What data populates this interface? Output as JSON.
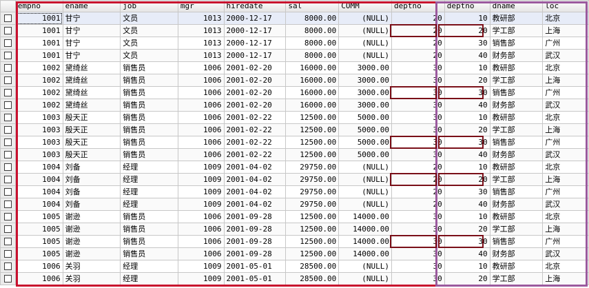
{
  "columns": [
    "empno",
    "ename",
    "job",
    "mgr",
    "hiredate",
    "sal",
    "COMM",
    "deptno",
    "deptno",
    "dname",
    "loc"
  ],
  "rows": [
    [
      "1001",
      "甘宁",
      "文员",
      "1013",
      "2000-12-17",
      "8000.00",
      "(NULL)",
      "20",
      "10",
      "教研部",
      "北京"
    ],
    [
      "1001",
      "甘宁",
      "文员",
      "1013",
      "2000-12-17",
      "8000.00",
      "(NULL)",
      "20",
      "20",
      "学工部",
      "上海"
    ],
    [
      "1001",
      "甘宁",
      "文员",
      "1013",
      "2000-12-17",
      "8000.00",
      "(NULL)",
      "20",
      "30",
      "销售部",
      "广州"
    ],
    [
      "1001",
      "甘宁",
      "文员",
      "1013",
      "2000-12-17",
      "8000.00",
      "(NULL)",
      "20",
      "40",
      "财务部",
      "武汉"
    ],
    [
      "1002",
      "黛绮丝",
      "销售员",
      "1006",
      "2001-02-20",
      "16000.00",
      "3000.00",
      "30",
      "10",
      "教研部",
      "北京"
    ],
    [
      "1002",
      "黛绮丝",
      "销售员",
      "1006",
      "2001-02-20",
      "16000.00",
      "3000.00",
      "30",
      "20",
      "学工部",
      "上海"
    ],
    [
      "1002",
      "黛绮丝",
      "销售员",
      "1006",
      "2001-02-20",
      "16000.00",
      "3000.00",
      "30",
      "30",
      "销售部",
      "广州"
    ],
    [
      "1002",
      "黛绮丝",
      "销售员",
      "1006",
      "2001-02-20",
      "16000.00",
      "3000.00",
      "30",
      "40",
      "财务部",
      "武汉"
    ],
    [
      "1003",
      "殷天正",
      "销售员",
      "1006",
      "2001-02-22",
      "12500.00",
      "5000.00",
      "30",
      "10",
      "教研部",
      "北京"
    ],
    [
      "1003",
      "殷天正",
      "销售员",
      "1006",
      "2001-02-22",
      "12500.00",
      "5000.00",
      "30",
      "20",
      "学工部",
      "上海"
    ],
    [
      "1003",
      "殷天正",
      "销售员",
      "1006",
      "2001-02-22",
      "12500.00",
      "5000.00",
      "30",
      "30",
      "销售部",
      "广州"
    ],
    [
      "1003",
      "殷天正",
      "销售员",
      "1006",
      "2001-02-22",
      "12500.00",
      "5000.00",
      "30",
      "40",
      "财务部",
      "武汉"
    ],
    [
      "1004",
      "刘备",
      "经理",
      "1009",
      "2001-04-02",
      "29750.00",
      "(NULL)",
      "20",
      "10",
      "教研部",
      "北京"
    ],
    [
      "1004",
      "刘备",
      "经理",
      "1009",
      "2001-04-02",
      "29750.00",
      "(NULL)",
      "20",
      "20",
      "学工部",
      "上海"
    ],
    [
      "1004",
      "刘备",
      "经理",
      "1009",
      "2001-04-02",
      "29750.00",
      "(NULL)",
      "20",
      "30",
      "销售部",
      "广州"
    ],
    [
      "1004",
      "刘备",
      "经理",
      "1009",
      "2001-04-02",
      "29750.00",
      "(NULL)",
      "20",
      "40",
      "财务部",
      "武汉"
    ],
    [
      "1005",
      "谢逊",
      "销售员",
      "1006",
      "2001-09-28",
      "12500.00",
      "14000.00",
      "30",
      "10",
      "教研部",
      "北京"
    ],
    [
      "1005",
      "谢逊",
      "销售员",
      "1006",
      "2001-09-28",
      "12500.00",
      "14000.00",
      "30",
      "20",
      "学工部",
      "上海"
    ],
    [
      "1005",
      "谢逊",
      "销售员",
      "1006",
      "2001-09-28",
      "12500.00",
      "14000.00",
      "30",
      "30",
      "销售部",
      "广州"
    ],
    [
      "1005",
      "谢逊",
      "销售员",
      "1006",
      "2001-09-28",
      "12500.00",
      "14000.00",
      "30",
      "40",
      "财务部",
      "武汉"
    ],
    [
      "1006",
      "关羽",
      "经理",
      "1009",
      "2001-05-01",
      "28500.00",
      "(NULL)",
      "30",
      "10",
      "教研部",
      "北京"
    ],
    [
      "1006",
      "关羽",
      "经理",
      "1009",
      "2001-05-01",
      "28500.00",
      "(NULL)",
      "30",
      "20",
      "学工部",
      "上海"
    ]
  ],
  "column_align": [
    "num",
    "txt",
    "txt",
    "num",
    "mono",
    "num",
    "num",
    "num",
    "num",
    "txt",
    "txt"
  ],
  "highlight_rows": [
    1,
    6,
    10,
    13,
    18
  ],
  "colors": {
    "left_box": "#c8102e",
    "right_box": "#9b5a9e",
    "match_box": "#7a0f18",
    "header_bg": "#e5e5e5",
    "first_row_bg": "#e7ecf8"
  },
  "icons": {
    "row_select": "checkbox-icon"
  }
}
